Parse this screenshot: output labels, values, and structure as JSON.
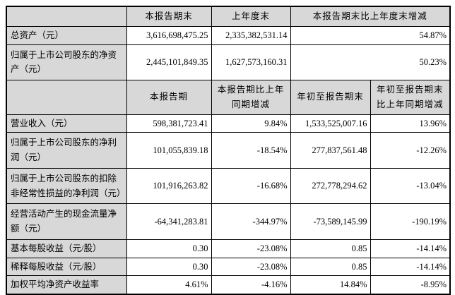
{
  "colors": {
    "header_bg": "#d8d8d8",
    "label_bg": "#d8d8d8",
    "cell_bg": "#ffffff",
    "border": "#000000",
    "text": "#000000",
    "page_bg": "#ffffff"
  },
  "table": {
    "section1": {
      "header": {
        "corner": "",
        "cols": [
          "本报告期末",
          "上年度末",
          "本报告期末比上年度末增减"
        ]
      },
      "rows": [
        {
          "label": "总资产（元）",
          "values": [
            "3,616,698,475.25",
            "2,335,382,531.14",
            "54.87%"
          ]
        },
        {
          "label": "归属于上市公司股东的净资产（元）",
          "values": [
            "2,445,101,849.35",
            "1,627,573,160.31",
            "50.23%"
          ]
        }
      ]
    },
    "section2": {
      "header": {
        "corner": "",
        "cols": [
          "本报告期",
          "本报告期比上年同期增减",
          "年初至报告期末",
          "年初至报告期末比上年同期增减"
        ]
      },
      "rows": [
        {
          "label": "营业收入（元）",
          "values": [
            "598,381,723.41",
            "9.84%",
            "1,533,525,007.16",
            "13.96%"
          ]
        },
        {
          "label": "归属于上市公司股东的净利润（元）",
          "values": [
            "101,055,839.18",
            "-18.54%",
            "277,837,561.48",
            "-12.26%"
          ]
        },
        {
          "label": "归属于上市公司股东的扣除非经常性损益的净利润（元）",
          "values": [
            "101,916,263.82",
            "-16.68%",
            "272,778,294.62",
            "-13.04%"
          ]
        },
        {
          "label": "经营活动产生的现金流量净额（元）",
          "values": [
            "-64,341,283.81",
            "-344.97%",
            "-73,589,145.99",
            "-190.19%"
          ]
        },
        {
          "label": "基本每股收益（元/股）",
          "values": [
            "0.30",
            "-23.08%",
            "0.85",
            "-14.14%"
          ]
        },
        {
          "label": "稀释每股收益（元/股）",
          "values": [
            "0.30",
            "-23.08%",
            "0.85",
            "-14.14%"
          ]
        },
        {
          "label": "加权平均净资产收益率",
          "values": [
            "4.61%",
            "-4.16%",
            "14.84%",
            "-8.95%"
          ]
        }
      ]
    }
  }
}
